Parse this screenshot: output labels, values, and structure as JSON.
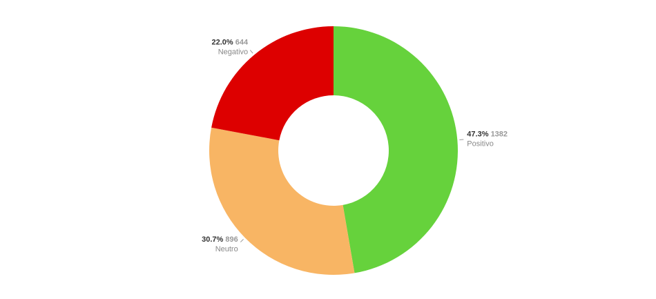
{
  "chart_data": {
    "type": "donut",
    "categories": [
      "Positivo",
      "Neutro",
      "Negativo"
    ],
    "values": [
      1382,
      896,
      644
    ],
    "percent_labels": [
      "47.3%",
      "30.7%",
      "22.0%"
    ],
    "colors": [
      "#66d23c",
      "#f8b564",
      "#dd0000"
    ]
  }
}
